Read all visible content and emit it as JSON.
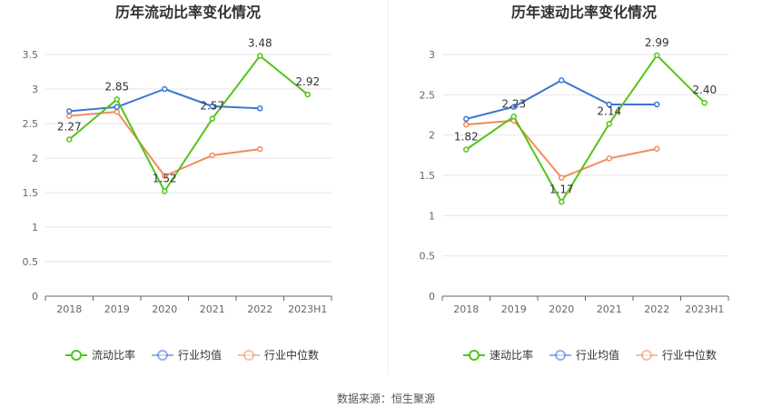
{
  "source_text": "数据来源：恒生聚源",
  "chart_data": [
    {
      "type": "line",
      "title": "历年流动比率变化情况",
      "categories": [
        "2018",
        "2019",
        "2020",
        "2021",
        "2022",
        "2023H1"
      ],
      "ylim": [
        0,
        3.5
      ],
      "yticks": [
        "0",
        "0.5",
        "1",
        "1.5",
        "2",
        "2.5",
        "3",
        "3.5"
      ],
      "grid": true,
      "legend_position": "bottom",
      "series": [
        {
          "name": "流动比率",
          "color": "#52c41a",
          "values": [
            2.27,
            2.85,
            1.52,
            2.57,
            3.48,
            2.92
          ],
          "labels": [
            "2.27",
            "2.85",
            "1.52",
            "2.57",
            "3.48",
            "2.92"
          ]
        },
        {
          "name": "行业均值",
          "color": "#3b74d6",
          "values": [
            2.68,
            2.74,
            3.0,
            2.75,
            2.72,
            null
          ]
        },
        {
          "name": "行业中位数",
          "color": "#f28b5b",
          "values": [
            2.61,
            2.67,
            1.74,
            2.04,
            2.13,
            null
          ]
        }
      ]
    },
    {
      "type": "line",
      "title": "历年速动比率变化情况",
      "categories": [
        "2018",
        "2019",
        "2020",
        "2021",
        "2022",
        "2023H1"
      ],
      "ylim": [
        0,
        3
      ],
      "yticks": [
        "0",
        "0.5",
        "1",
        "1.5",
        "2",
        "2.5",
        "3"
      ],
      "grid": true,
      "legend_position": "bottom",
      "series": [
        {
          "name": "速动比率",
          "color": "#52c41a",
          "values": [
            1.82,
            2.23,
            1.17,
            2.14,
            2.99,
            2.4
          ],
          "labels": [
            "1.82",
            "2.23",
            "1.17",
            "2.14",
            "2.99",
            "2.40"
          ]
        },
        {
          "name": "行业均值",
          "color": "#3b74d6",
          "values": [
            2.2,
            2.35,
            2.68,
            2.38,
            2.38,
            null
          ]
        },
        {
          "name": "行业中位数",
          "color": "#f28b5b",
          "values": [
            2.13,
            2.18,
            1.47,
            1.71,
            1.83,
            null
          ]
        }
      ]
    }
  ]
}
